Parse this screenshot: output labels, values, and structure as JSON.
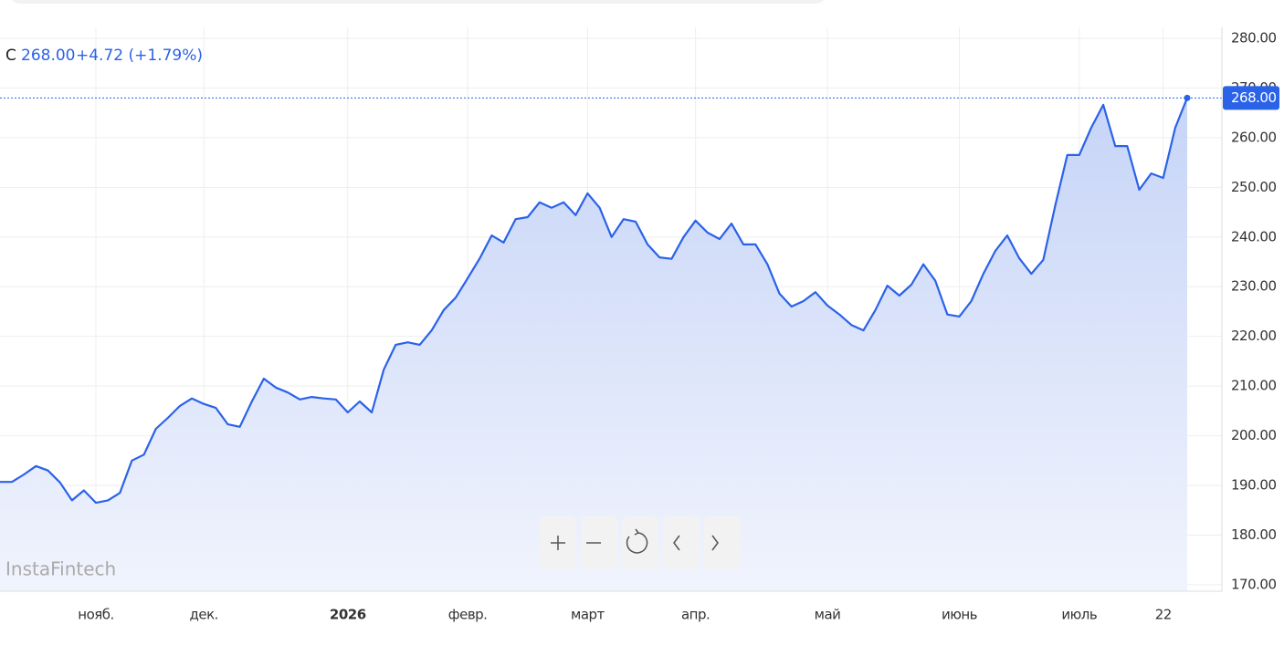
{
  "chart_data": {
    "type": "line",
    "legend_prefix": "C",
    "legend_price": "268.00",
    "legend_change": "+4.72 (+1.79%)",
    "last_price_label": "268.00",
    "watermark": "InstaFintech",
    "categories": [
      null,
      null,
      null,
      null,
      null,
      null,
      null,
      null,
      "нояб.",
      null,
      null,
      null,
      null,
      null,
      null,
      null,
      null,
      "дек.",
      null,
      null,
      null,
      null,
      null,
      null,
      null,
      null,
      null,
      null,
      null,
      "2026",
      null,
      null,
      null,
      null,
      null,
      null,
      null,
      null,
      null,
      "февр.",
      null,
      null,
      null,
      null,
      null,
      null,
      null,
      null,
      null,
      "март",
      null,
      null,
      null,
      null,
      null,
      null,
      null,
      null,
      "апр.",
      null,
      null,
      null,
      null,
      null,
      null,
      null,
      null,
      null,
      null,
      "май",
      null,
      null,
      null,
      null,
      null,
      null,
      null,
      null,
      null,
      null,
      "июнь",
      null,
      null,
      null,
      null,
      null,
      null,
      null,
      null,
      null,
      "июль",
      null,
      null,
      null,
      null,
      null,
      null,
      "22",
      null,
      null
    ],
    "series": [
      {
        "name": "C",
        "color": "#2a62e8",
        "values": [
          190.7,
          190.7,
          192.2,
          193.9,
          193,
          190.6,
          187,
          189,
          186.5,
          187,
          188.5,
          195,
          196.2,
          201.4,
          203.6,
          206,
          207.5,
          206.4,
          205.6,
          202.3,
          201.8,
          206.9,
          211.5,
          209.7,
          208.7,
          207.3,
          207.8,
          207.5,
          207.3,
          204.7,
          206.9,
          204.7,
          213.3,
          218.3,
          218.8,
          218.3,
          221.2,
          225.3,
          227.8,
          231.7,
          235.7,
          240.3,
          238.9,
          243.6,
          244,
          247,
          245.9,
          247,
          244.4,
          248.8,
          245.9,
          240,
          243.6,
          243.1,
          238.5,
          235.9,
          235.6,
          240,
          243.3,
          240.9,
          239.6,
          242.7,
          238.5,
          238.5,
          234.5,
          228.6,
          226,
          227.1,
          228.9,
          226.2,
          224.4,
          222.3,
          221.2,
          225.3,
          230.2,
          228.2,
          230.4,
          234.5,
          231.2,
          224.4,
          224,
          227.1,
          232.6,
          237.2,
          240.3,
          235.7,
          232.6,
          235.4,
          246.4,
          256.5,
          256.5,
          262,
          266.6,
          258.3,
          258.3,
          249.5,
          252.8,
          251.9,
          262,
          268
        ]
      }
    ],
    "ylim": [
      168.7,
      282.2
    ],
    "yticks": [
      {
        "value": 170,
        "label": "170.00"
      },
      {
        "value": 180,
        "label": "180.00"
      },
      {
        "value": 190,
        "label": "190.00"
      },
      {
        "value": 200,
        "label": "200.00"
      },
      {
        "value": 210,
        "label": "210.00"
      },
      {
        "value": 220,
        "label": "220.00"
      },
      {
        "value": 230,
        "label": "230.00"
      },
      {
        "value": 240,
        "label": "240.00"
      },
      {
        "value": 250,
        "label": "250.00"
      },
      {
        "value": 260,
        "label": "260.00"
      },
      {
        "value": 270,
        "label": "270.00"
      },
      {
        "value": 280,
        "label": "280.00"
      }
    ],
    "grid": true
  }
}
